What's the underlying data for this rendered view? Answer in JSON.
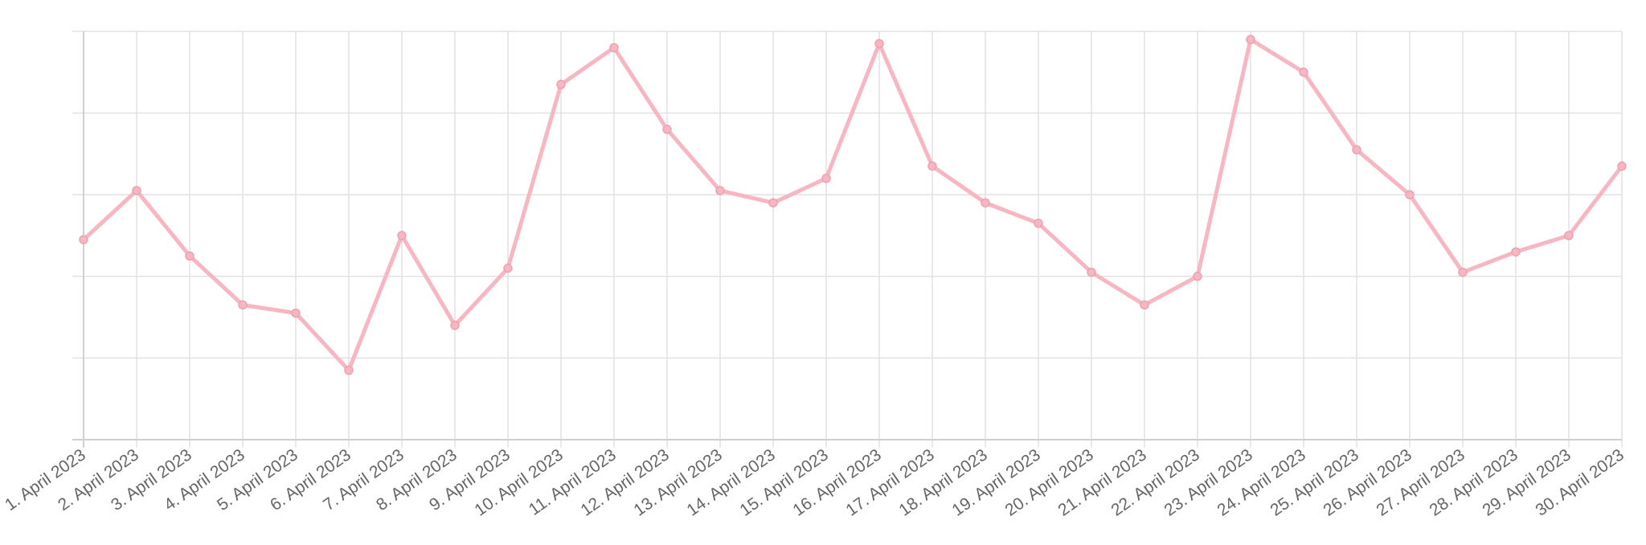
{
  "chart_data": {
    "type": "line",
    "categories": [
      "1. April 2023",
      "2. April 2023",
      "3. April 2023",
      "4. April 2023",
      "5. April 2023",
      "6. April 2023",
      "7. April 2023",
      "8. April 2023",
      "9. April 2023",
      "10. April 2023",
      "11. April 2023",
      "12. April 2023",
      "13. April 2023",
      "14. April 2023",
      "15. April 2023",
      "16. April 2023",
      "17. April 2023",
      "18. April 2023",
      "19. April 2023",
      "20. April 2023",
      "21. April 2023",
      "22. April 2023",
      "23. April 2023",
      "24. April 2023",
      "25. April 2023",
      "26. April 2023",
      "27. April 2023",
      "28. April 2023",
      "29. April 2023",
      "30. April 2023"
    ],
    "values": [
      49,
      61,
      45,
      33,
      31,
      17,
      50,
      28,
      42,
      87,
      96,
      76,
      61,
      58,
      64,
      97,
      67,
      58,
      53,
      41,
      33,
      40,
      98,
      90,
      71,
      60,
      41,
      46,
      50,
      67
    ],
    "color": "#f7b6c2",
    "ylim": [
      0,
      100
    ],
    "yticks": [
      0,
      20,
      40,
      60,
      80,
      100
    ],
    "grid": true
  }
}
